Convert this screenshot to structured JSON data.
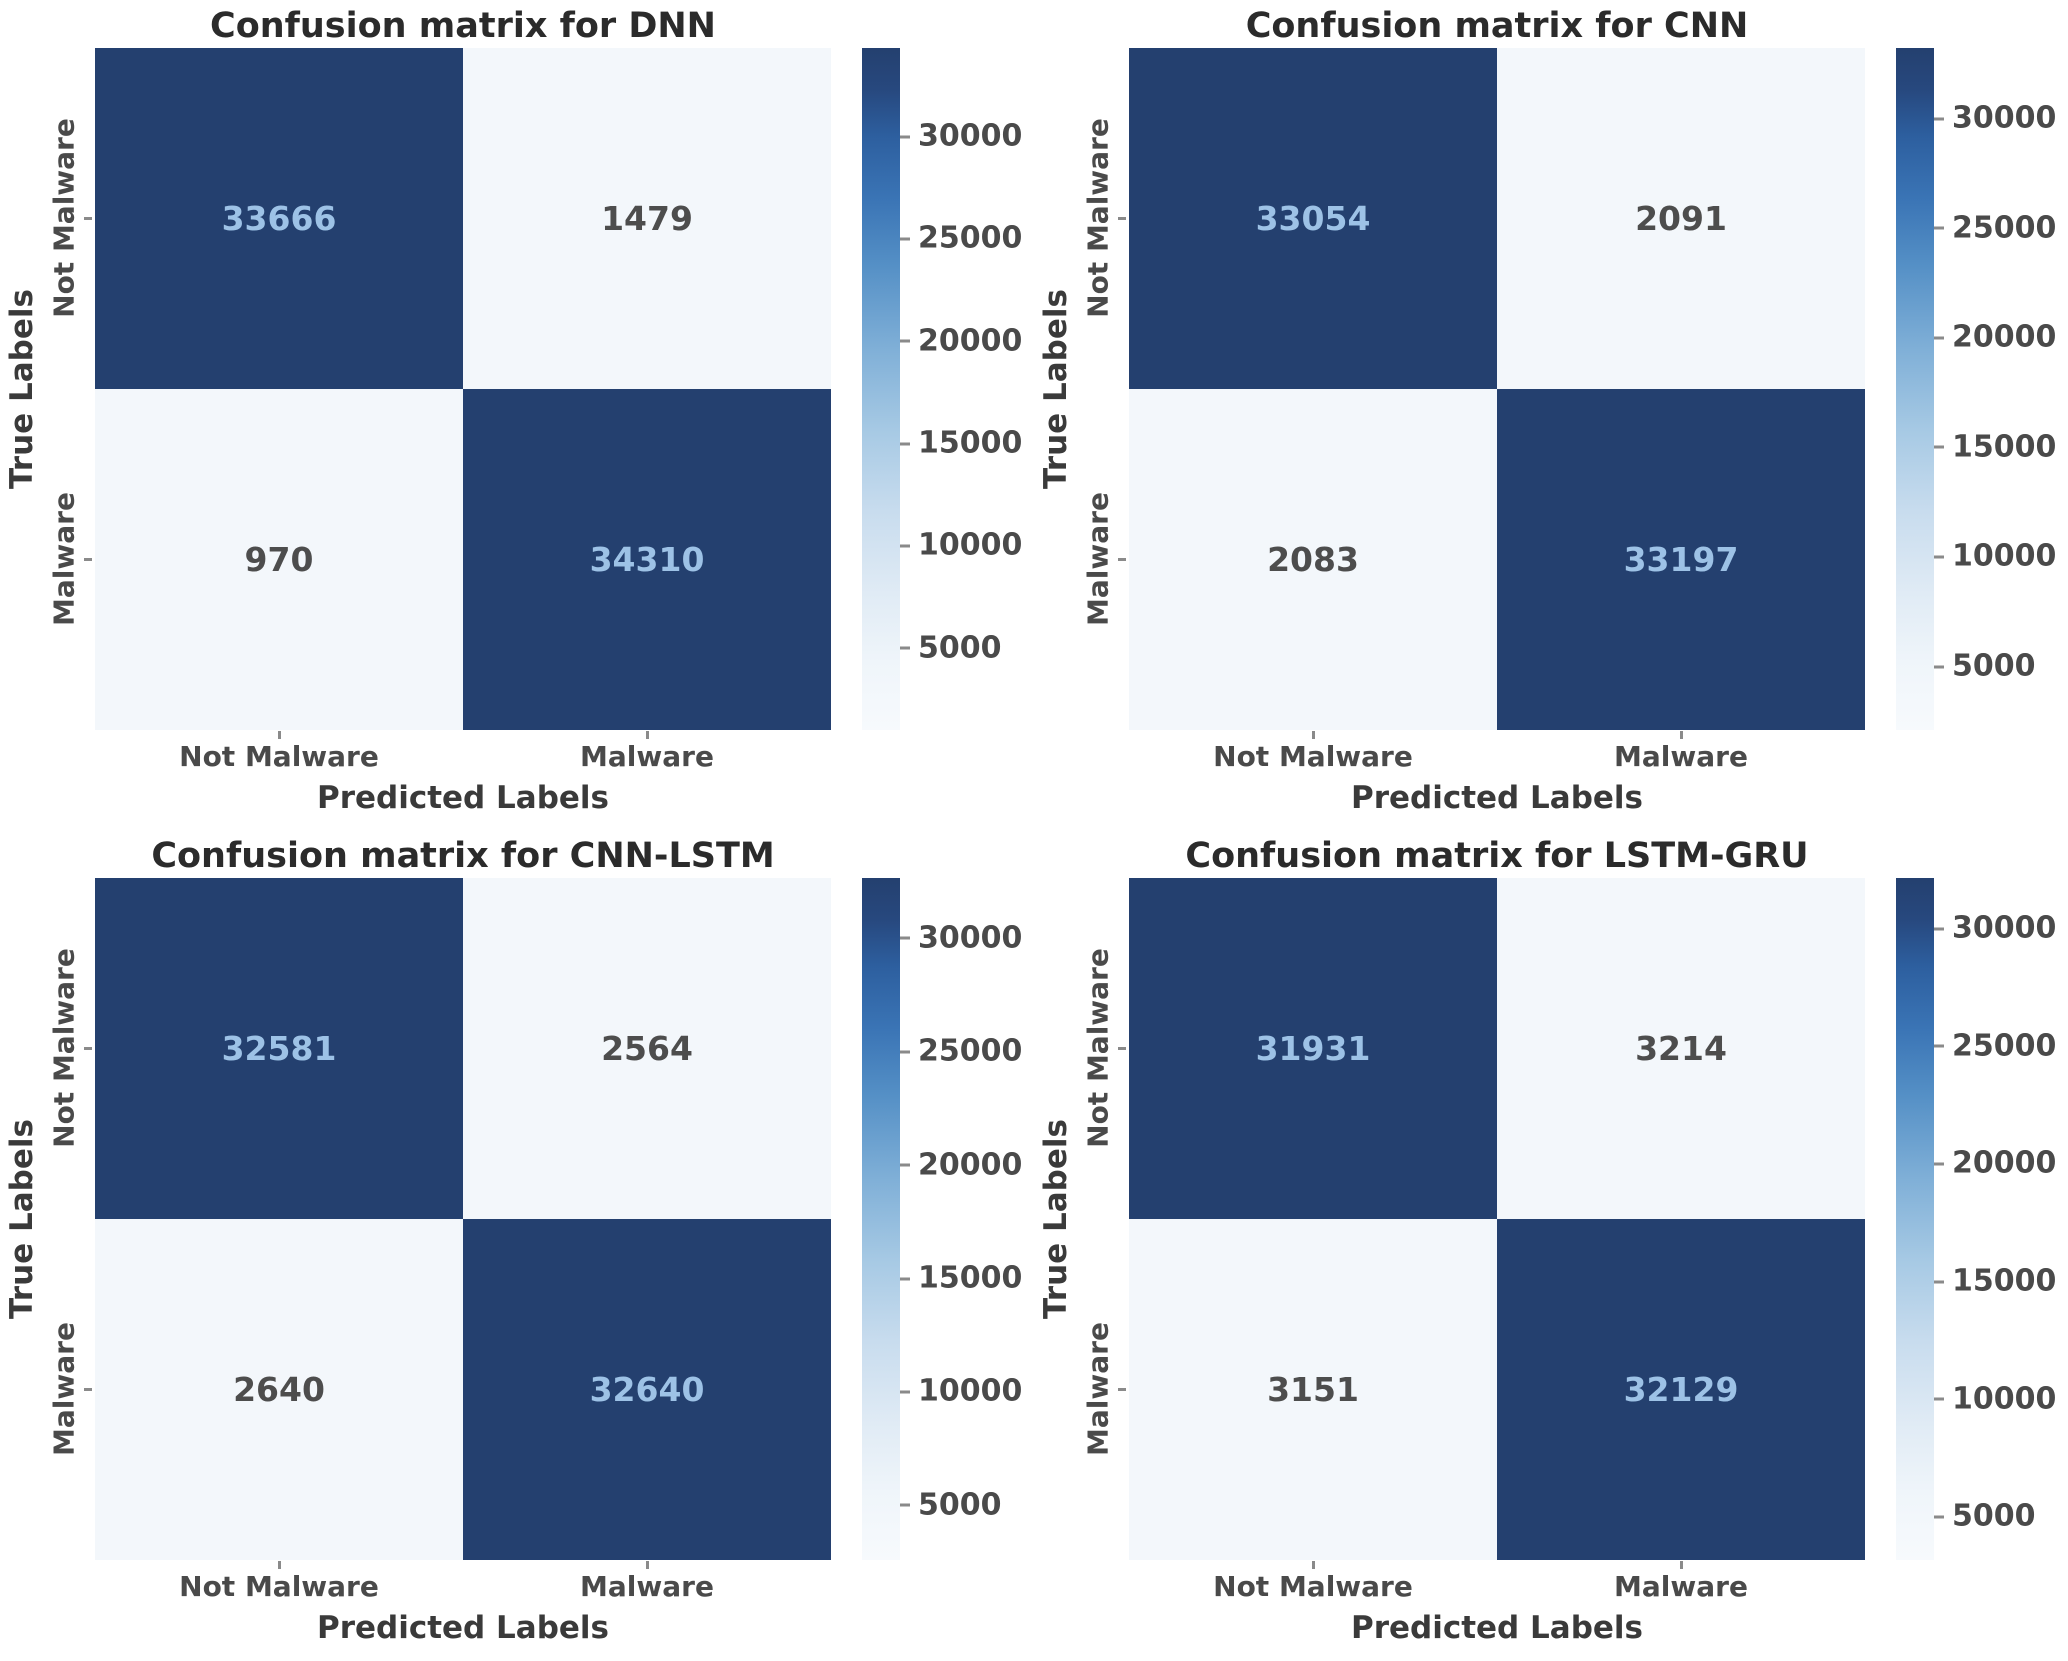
{
  "figure": {
    "background": "#ffffff",
    "dark_cell_color": "#24406f",
    "light_cell_color": "#f3f7fb",
    "dark_cell_text_color": "#9dc2e6",
    "light_cell_text_color": "#4d4d4d",
    "colormap": "Blues"
  },
  "chart_data": [
    {
      "type": "heatmap",
      "title": "Confusion matrix for DNN",
      "xlabel": "Predicted Labels",
      "ylabel": "True Labels",
      "x_tick_labels": [
        "Not Malware",
        "Malware"
      ],
      "y_tick_labels": [
        "Not Malware",
        "Malware"
      ],
      "matrix": [
        [
          33666,
          1479
        ],
        [
          970,
          34310
        ]
      ],
      "vmin": 970,
      "vmax": 34310,
      "colorbar_ticks": [
        30000,
        25000,
        20000,
        15000,
        10000,
        5000
      ],
      "legend_position": "right-colorbar",
      "grid": false
    },
    {
      "type": "heatmap",
      "title": "Confusion matrix for CNN",
      "xlabel": "Predicted Labels",
      "ylabel": "True Labels",
      "x_tick_labels": [
        "Not Malware",
        "Malware"
      ],
      "y_tick_labels": [
        "Not Malware",
        "Malware"
      ],
      "matrix": [
        [
          33054,
          2091
        ],
        [
          2083,
          33197
        ]
      ],
      "vmin": 2083,
      "vmax": 33197,
      "colorbar_ticks": [
        30000,
        25000,
        20000,
        15000,
        10000,
        5000
      ],
      "legend_position": "right-colorbar",
      "grid": false
    },
    {
      "type": "heatmap",
      "title": "Confusion matrix for CNN-LSTM",
      "xlabel": "Predicted Labels",
      "ylabel": "True Labels",
      "x_tick_labels": [
        "Not Malware",
        "Malware"
      ],
      "y_tick_labels": [
        "Not Malware",
        "Malware"
      ],
      "matrix": [
        [
          32581,
          2564
        ],
        [
          2640,
          32640
        ]
      ],
      "vmin": 2564,
      "vmax": 32640,
      "colorbar_ticks": [
        30000,
        25000,
        20000,
        15000,
        10000,
        5000
      ],
      "legend_position": "right-colorbar",
      "grid": false
    },
    {
      "type": "heatmap",
      "title": "Confusion matrix for LSTM-GRU",
      "xlabel": "Predicted Labels",
      "ylabel": "True Labels",
      "x_tick_labels": [
        "Not Malware",
        "Malware"
      ],
      "y_tick_labels": [
        "Not Malware",
        "Malware"
      ],
      "matrix": [
        [
          31931,
          3214
        ],
        [
          3151,
          32129
        ]
      ],
      "vmin": 3151,
      "vmax": 32129,
      "colorbar_ticks": [
        30000,
        25000,
        20000,
        15000,
        10000,
        5000
      ],
      "legend_position": "right-colorbar",
      "grid": false
    }
  ]
}
